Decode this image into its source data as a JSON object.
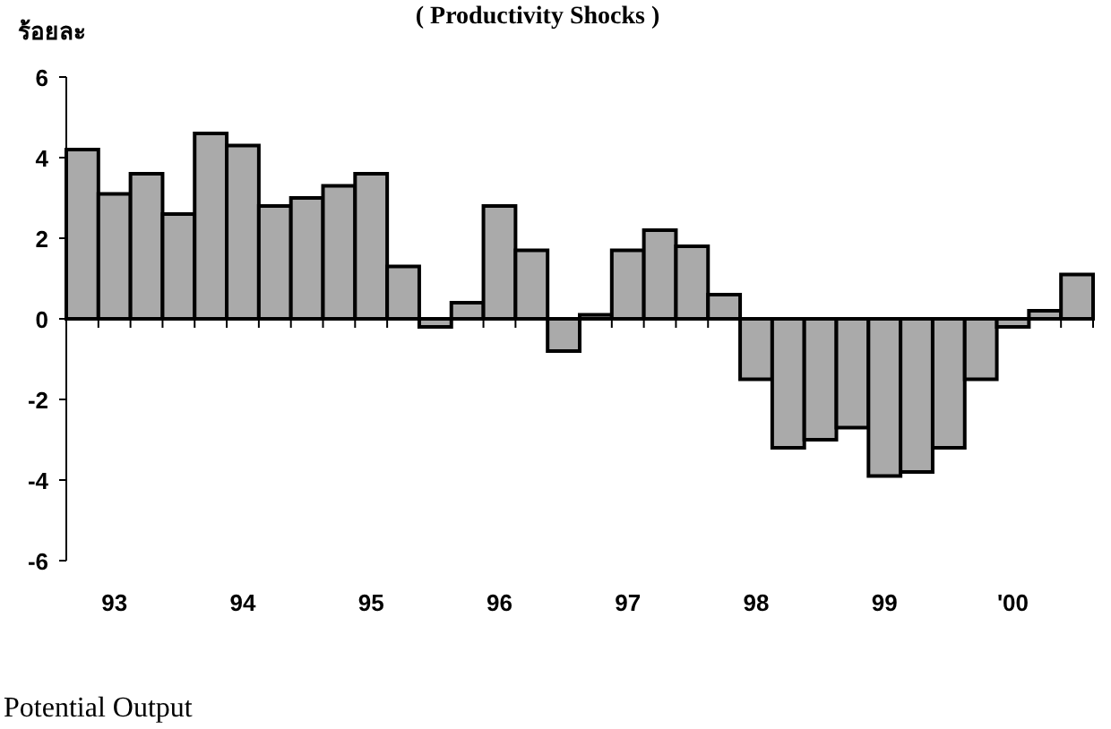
{
  "chart_data": {
    "type": "bar",
    "title": "( Productivity Shocks )",
    "ylabel": "ร้อยละ",
    "categories": [
      null,
      "93",
      null,
      null,
      null,
      "94",
      null,
      null,
      null,
      "95",
      null,
      null,
      null,
      "96",
      null,
      null,
      null,
      "97",
      null,
      null,
      null,
      "98",
      null,
      null,
      null,
      "99",
      null,
      null,
      null,
      "'00",
      null,
      null
    ],
    "values": [
      4.2,
      3.1,
      3.6,
      2.6,
      4.6,
      4.3,
      2.8,
      3.0,
      3.3,
      3.6,
      1.3,
      -0.2,
      0.4,
      2.8,
      1.7,
      -0.8,
      0.1,
      1.7,
      2.2,
      1.8,
      0.6,
      -1.5,
      -3.2,
      -3.0,
      -2.7,
      -3.9,
      -3.8,
      -3.2,
      -1.5,
      -0.2,
      0.2,
      1.1
    ],
    "color": "#aaaaaa",
    "ylim": [
      -6,
      6
    ],
    "yticks": [
      -6,
      -4,
      -2,
      0,
      2,
      4,
      6
    ],
    "grid": false,
    "annotations": [
      "Potential Output"
    ]
  }
}
